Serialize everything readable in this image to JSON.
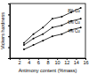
{
  "chart_data": {
    "type": "line",
    "x_label": "Antimony content (%mass)",
    "y_label": "Vickers hardness",
    "x": [
      3,
      5,
      7,
      9,
      11,
      13,
      15
    ],
    "series": [
      {
        "name": "8% Cu",
        "color": "#000000",
        "marker": "circle",
        "values": [
          17,
          21,
          24,
          28,
          29,
          31,
          33
        ]
      },
      {
        "name": "6% Cu",
        "color": "#000000",
        "marker": "circle",
        "values": [
          16,
          19,
          21,
          24,
          25,
          27,
          28
        ]
      },
      {
        "name": "4% Cu",
        "color": "#000000",
        "marker": "circle",
        "values": [
          14,
          16,
          18,
          20,
          21,
          23,
          24
        ]
      }
    ],
    "xlim": [
      0,
      16
    ],
    "xticks": [
      2,
      4,
      6,
      8,
      10,
      12,
      14,
      16
    ],
    "ylim": [
      10,
      35
    ],
    "yticks": [
      15,
      20,
      25,
      30,
      35
    ],
    "tick_labels": "x"
  }
}
